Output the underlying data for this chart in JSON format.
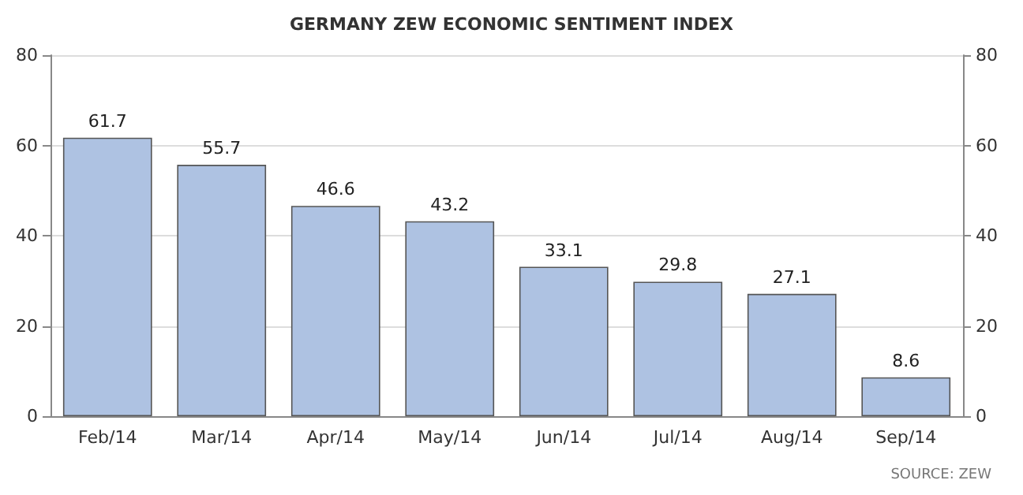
{
  "chart_data": {
    "type": "bar",
    "title": "GERMANY ZEW ECONOMIC SENTIMENT INDEX",
    "categories": [
      "Feb/14",
      "Mar/14",
      "Apr/14",
      "May/14",
      "Jun/14",
      "Jul/14",
      "Aug/14",
      "Sep/14"
    ],
    "values": [
      61.7,
      55.7,
      46.6,
      43.2,
      33.1,
      29.8,
      27.1,
      8.6
    ],
    "color": "#aec2e2",
    "ylim": [
      0,
      80
    ],
    "yticks": [
      0,
      20,
      40,
      60,
      80
    ],
    "y2lim": [
      0,
      80
    ],
    "y2ticks": [
      0,
      20,
      40,
      60,
      80
    ],
    "grid": "y",
    "data_labels": true,
    "annotations": [
      "SOURCE: ZEW"
    ]
  }
}
